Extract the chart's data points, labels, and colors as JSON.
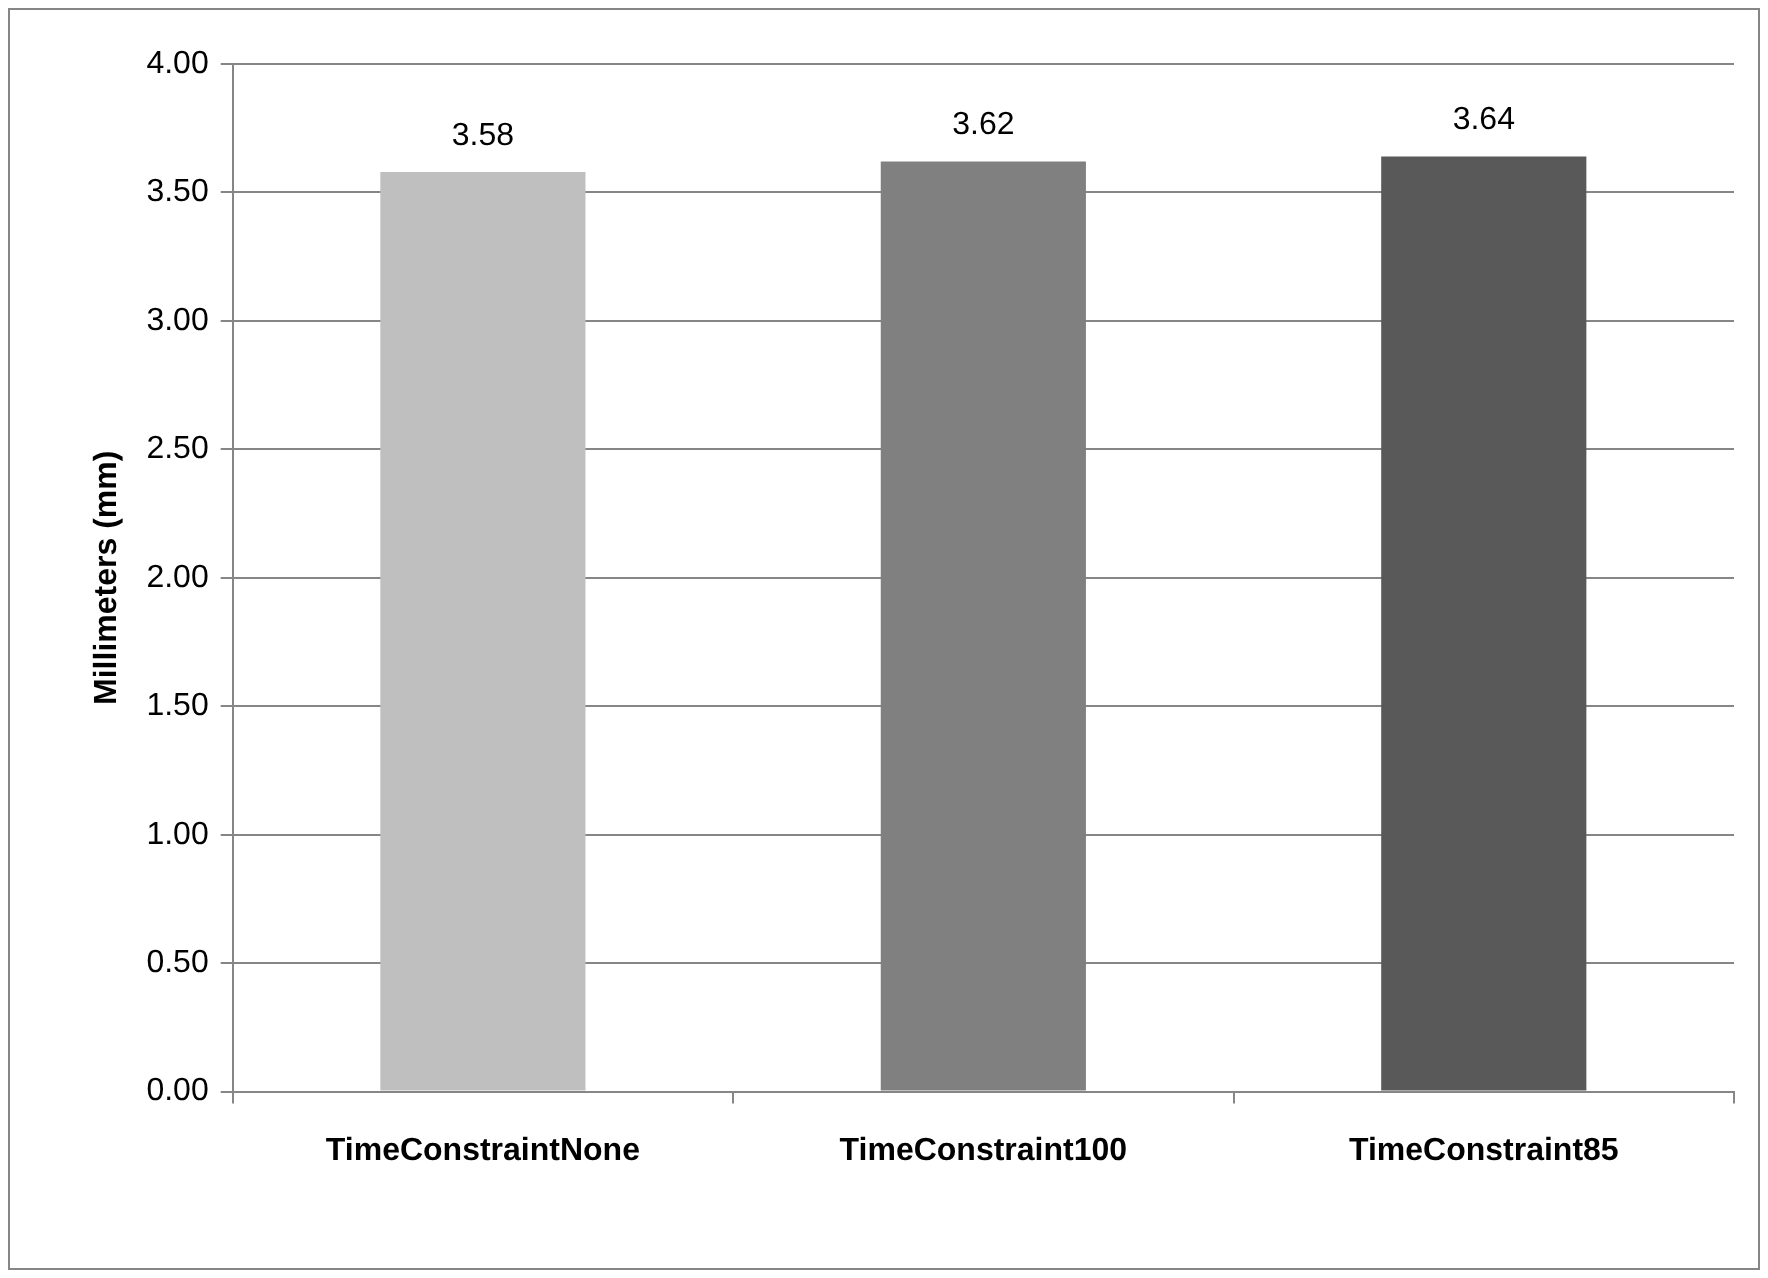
{
  "chart_data": {
    "type": "bar",
    "ylabel": "Millimeters (mm)",
    "categories": [
      "TimeConstraintNone",
      "TimeConstraint100",
      "TimeConstraint85"
    ],
    "values": [
      3.58,
      3.62,
      3.64
    ],
    "colors": [
      "#bfbfbf",
      "#808080",
      "#595959"
    ],
    "ylim": [
      0,
      4
    ],
    "yticks": [
      {
        "value": 0,
        "label": "0.00"
      },
      {
        "value": 0.5,
        "label": "0.50"
      },
      {
        "value": 1,
        "label": "1.00"
      },
      {
        "value": 1.5,
        "label": "1.50"
      },
      {
        "value": 2,
        "label": "2.00"
      },
      {
        "value": 2.5,
        "label": "2.50"
      },
      {
        "value": 3,
        "label": "3.00"
      },
      {
        "value": 3.5,
        "label": "3.50"
      },
      {
        "value": 4,
        "label": "4.00"
      }
    ],
    "grid": "y",
    "data_labels": true,
    "legend": false
  }
}
